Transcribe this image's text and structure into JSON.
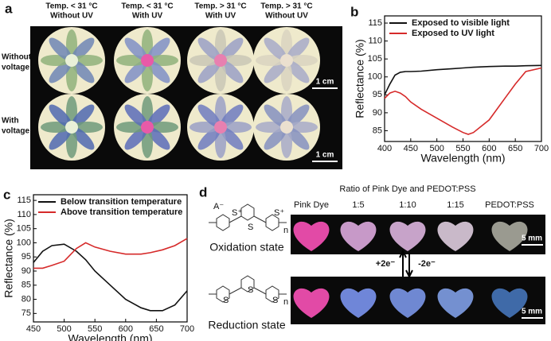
{
  "panels": {
    "a": {
      "letter": "a",
      "columns": [
        [
          "Temp. < 31 °C",
          "Without UV"
        ],
        [
          "Temp. < 31 °C",
          "With UV"
        ],
        [
          "Temp. > 31 °C",
          "With UV"
        ],
        [
          "Temp. > 31 °C",
          "Without UV"
        ]
      ],
      "rows": [
        [
          "Without",
          "voltage"
        ],
        [
          "With",
          "voltage"
        ]
      ],
      "scale_bars": [
        "1 cm",
        "1 cm"
      ]
    },
    "d": {
      "letter": "d",
      "title": "Ratio of Pink Dye and PEDOT:PSS",
      "columns": [
        "Pink Dye",
        "1:5",
        "1:10",
        "1:15",
        "PEDOT:PSS"
      ],
      "states": [
        "Oxidation state",
        "Reduction state"
      ],
      "arrows": [
        "+2e⁻",
        "-2e⁻"
      ],
      "scale_bars": [
        "5 mm",
        "5 mm"
      ],
      "oxidation_labels": [
        "A⁻",
        "S⁺",
        "S",
        "S⁺",
        "n"
      ],
      "reduction_labels": [
        "S",
        "S",
        "S",
        "n"
      ]
    }
  },
  "chart_data": [
    {
      "type": "line",
      "letter": "b",
      "xlabel": "Wavelength (nm)",
      "ylabel": "Reflectance (%)",
      "x": [
        400,
        410,
        420,
        430,
        440,
        450,
        470,
        500,
        530,
        550,
        560,
        570,
        600,
        630,
        650,
        670,
        700
      ],
      "series": [
        {
          "name": "Exposed to visible light",
          "color": "#111111",
          "values": [
            95,
            98,
            100.5,
            101.3,
            101.5,
            101.5,
            101.6,
            102,
            102.3,
            102.5,
            102.6,
            102.7,
            102.9,
            103,
            103,
            103.1,
            103.2
          ]
        },
        {
          "name": "Exposed to UV light",
          "color": "#d62a2a",
          "values": [
            94,
            95.5,
            96,
            95.5,
            94.5,
            93,
            91,
            88.5,
            86,
            84.5,
            84,
            84.5,
            88,
            94,
            98,
            101.5,
            102.5
          ]
        }
      ],
      "xlim": [
        400,
        700
      ],
      "ylim": [
        82,
        117
      ],
      "xticks": [
        400,
        450,
        500,
        550,
        600,
        650,
        700
      ],
      "yticks": [
        85,
        90,
        95,
        100,
        105,
        110,
        115
      ],
      "legend": "upper left"
    },
    {
      "type": "line",
      "letter": "c",
      "xlabel": "Wavelength (nm)",
      "ylabel": "Reflectance (%)",
      "x": [
        450,
        465,
        480,
        500,
        520,
        535,
        550,
        575,
        600,
        625,
        640,
        660,
        680,
        700
      ],
      "series": [
        {
          "name": "Below transition temperature",
          "color": "#111111",
          "values": [
            93,
            97,
            99,
            99.5,
            97,
            94,
            90,
            85,
            80,
            77,
            76,
            76,
            78,
            83
          ]
        },
        {
          "name": "Above transition temperature",
          "color": "#d62a2a",
          "values": [
            91,
            91,
            92,
            93.5,
            98,
            100,
            98.5,
            97,
            96,
            96,
            96.5,
            97.5,
            99,
            101.5
          ]
        }
      ],
      "xlim": [
        450,
        700
      ],
      "ylim": [
        72,
        117
      ],
      "xticks": [
        450,
        500,
        550,
        600,
        650,
        700
      ],
      "yticks": [
        75,
        80,
        85,
        90,
        95,
        100,
        105,
        110,
        115
      ],
      "legend": "upper left"
    }
  ]
}
